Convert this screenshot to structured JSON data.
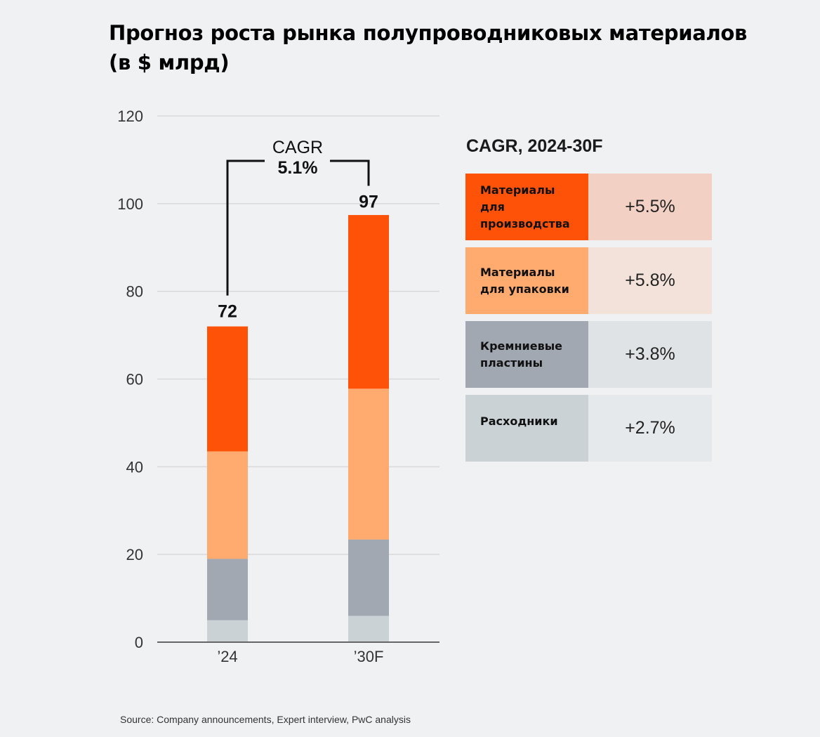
{
  "title_line1": "Прогноз роста рынка полупроводниковых материалов",
  "title_line2": "(в $ млрд)",
  "chart_data": {
    "type": "bar",
    "stacked": true,
    "categories": [
      "’24",
      "’30F"
    ],
    "series": [
      {
        "name": "Расходники",
        "values": [
          5,
          6
        ],
        "color": "#cbd2d6"
      },
      {
        "name": "Кремниевые пластины",
        "values": [
          14,
          17.4
        ],
        "color": "#a2a8b2"
      },
      {
        "name": "Материалы для упаковки",
        "values": [
          24.5,
          34.4
        ],
        "color": "#ffaa6e"
      },
      {
        "name": "Материалы для производства",
        "values": [
          28.5,
          39.6
        ],
        "color": "#fe5208"
      }
    ],
    "totals": [
      72,
      97
    ],
    "total_labels": [
      "72",
      "97"
    ],
    "ylim": [
      0,
      120
    ],
    "yticks": [
      0,
      20,
      40,
      60,
      80,
      100,
      120
    ],
    "ytick_labels": [
      "0",
      "20",
      "40",
      "60",
      "80",
      "100",
      "120"
    ],
    "grid": true,
    "annotation": {
      "line1": "CAGR",
      "line2": "5.1%"
    }
  },
  "cagr_table": {
    "heading": "CAGR, 2024-30F",
    "rows": [
      {
        "lines": [
          "Материалы",
          "для",
          "производства"
        ],
        "value": "+5.5%",
        "label_color": "#fe5208",
        "value_color": "#f3d0c4"
      },
      {
        "lines": [
          "Материалы",
          "для упаковки"
        ],
        "value": "+5.8%",
        "label_color": "#ffaa6e",
        "value_color": "#f2e2da"
      },
      {
        "lines": [
          "Кремниевые",
          "пластины"
        ],
        "value": "+3.8%",
        "label_color": "#a2a8b2",
        "value_color": "#e0e3e6"
      },
      {
        "lines": [
          "Расходники"
        ],
        "value": "+2.7%",
        "label_color": "#cbd2d6",
        "value_color": "#e6e9ec"
      }
    ]
  },
  "source": "Source: Company announcements, Expert interview, PwC analysis"
}
